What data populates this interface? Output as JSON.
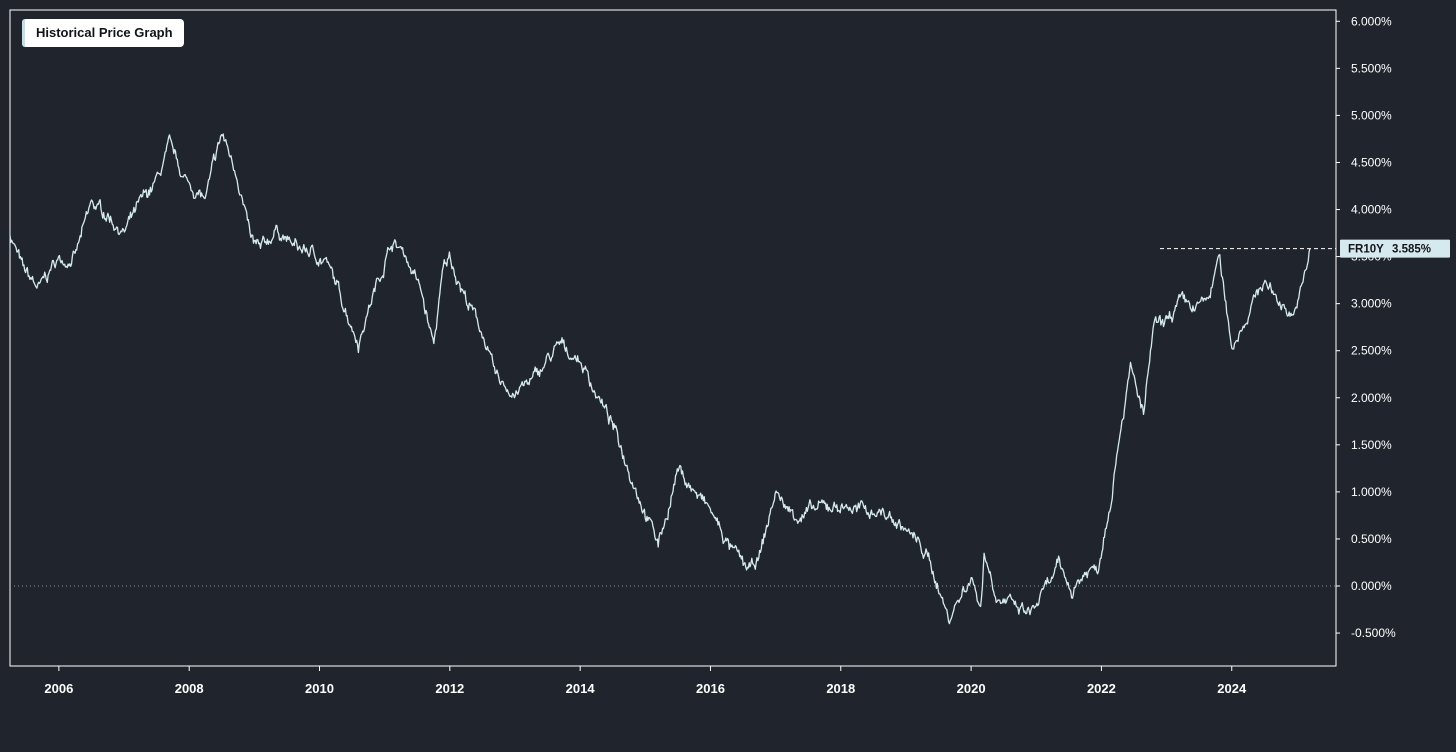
{
  "chart_data": {
    "type": "line",
    "title": "Historical Price Graph",
    "series_name": "FR10Y",
    "last_value": 3.585,
    "last_value_label": "3.585%",
    "colors": {
      "background": "#20252d",
      "line": "#d6e9ef",
      "frame": "#ffffff",
      "badge": "#d6e9ef"
    },
    "grid": false,
    "zero_line": true,
    "xlim": [
      2005.25,
      2025.6
    ],
    "ylim": [
      -0.85,
      6.12
    ],
    "x_ticks": [
      2006,
      2008,
      2010,
      2012,
      2014,
      2016,
      2018,
      2020,
      2022,
      2024
    ],
    "x_tick_labels": [
      "2006",
      "2008",
      "2010",
      "2012",
      "2014",
      "2016",
      "2018",
      "2020",
      "2022",
      "2024"
    ],
    "y_ticks": [
      -0.5,
      0,
      0.5,
      1,
      1.5,
      2,
      2.5,
      3,
      3.5,
      4,
      4.5,
      5,
      5.5,
      6
    ],
    "y_tick_labels": [
      "-0.500%",
      "0.000%",
      "0.500%",
      "1.000%",
      "1.500%",
      "2.000%",
      "2.500%",
      "3.000%",
      "3.500%",
      "4.000%",
      "4.500%",
      "5.000%",
      "5.500%",
      "6.000%"
    ],
    "x": [
      2005.25,
      2005.45,
      2005.7,
      2005.95,
      2006.25,
      2006.5,
      2006.75,
      2007.0,
      2007.25,
      2007.5,
      2007.7,
      2007.95,
      2008.25,
      2008.5,
      2008.75,
      2008.95,
      2009.1,
      2009.35,
      2009.6,
      2009.85,
      2010.1,
      2010.4,
      2010.6,
      2010.8,
      2011.1,
      2011.3,
      2011.55,
      2011.75,
      2011.9,
      2012.0,
      2012.25,
      2012.5,
      2012.7,
      2013.0,
      2013.3,
      2013.5,
      2013.7,
      2014.0,
      2014.25,
      2014.5,
      2014.75,
      2015.0,
      2015.2,
      2015.4,
      2015.5,
      2015.75,
      2016.0,
      2016.3,
      2016.6,
      2016.75,
      2017.0,
      2017.2,
      2017.4,
      2017.6,
      2017.85,
      2018.1,
      2018.3,
      2018.6,
      2018.8,
      2019.0,
      2019.3,
      2019.5,
      2019.65,
      2019.8,
      2020.0,
      2020.15,
      2020.2,
      2020.4,
      2020.7,
      2020.9,
      2021.1,
      2021.35,
      2021.55,
      2021.75,
      2021.95,
      2022.15,
      2022.3,
      2022.45,
      2022.65,
      2022.8,
      2022.95,
      2023.2,
      2023.45,
      2023.65,
      2023.8,
      2024.0,
      2024.25,
      2024.5,
      2024.75,
      2024.95,
      2025.1,
      2025.2
    ],
    "y": [
      3.75,
      3.35,
      3.15,
      3.45,
      3.5,
      4.05,
      3.95,
      3.75,
      4.05,
      4.3,
      4.65,
      4.3,
      4.1,
      4.8,
      4.35,
      3.65,
      3.55,
      3.8,
      3.6,
      3.55,
      3.45,
      2.95,
      2.6,
      3.05,
      3.65,
      3.55,
      3.15,
      2.55,
      3.35,
      3.5,
      3.05,
      2.7,
      2.2,
      2.05,
      2.2,
      2.4,
      2.55,
      2.4,
      2.05,
      1.7,
      1.25,
      0.8,
      0.45,
      0.95,
      1.25,
      1.0,
      0.8,
      0.4,
      0.15,
      0.3,
      1.0,
      0.8,
      0.75,
      0.8,
      0.85,
      0.85,
      0.8,
      0.8,
      0.7,
      0.6,
      0.35,
      0.0,
      -0.35,
      -0.15,
      0.1,
      -0.2,
      0.35,
      -0.1,
      -0.25,
      -0.3,
      -0.1,
      0.2,
      -0.05,
      0.15,
      0.2,
      1.0,
      1.75,
      2.3,
      1.8,
      2.75,
      2.75,
      3.0,
      2.95,
      3.05,
      3.5,
      2.55,
      2.9,
      3.25,
      3.0,
      2.9,
      3.2,
      3.585
    ]
  }
}
